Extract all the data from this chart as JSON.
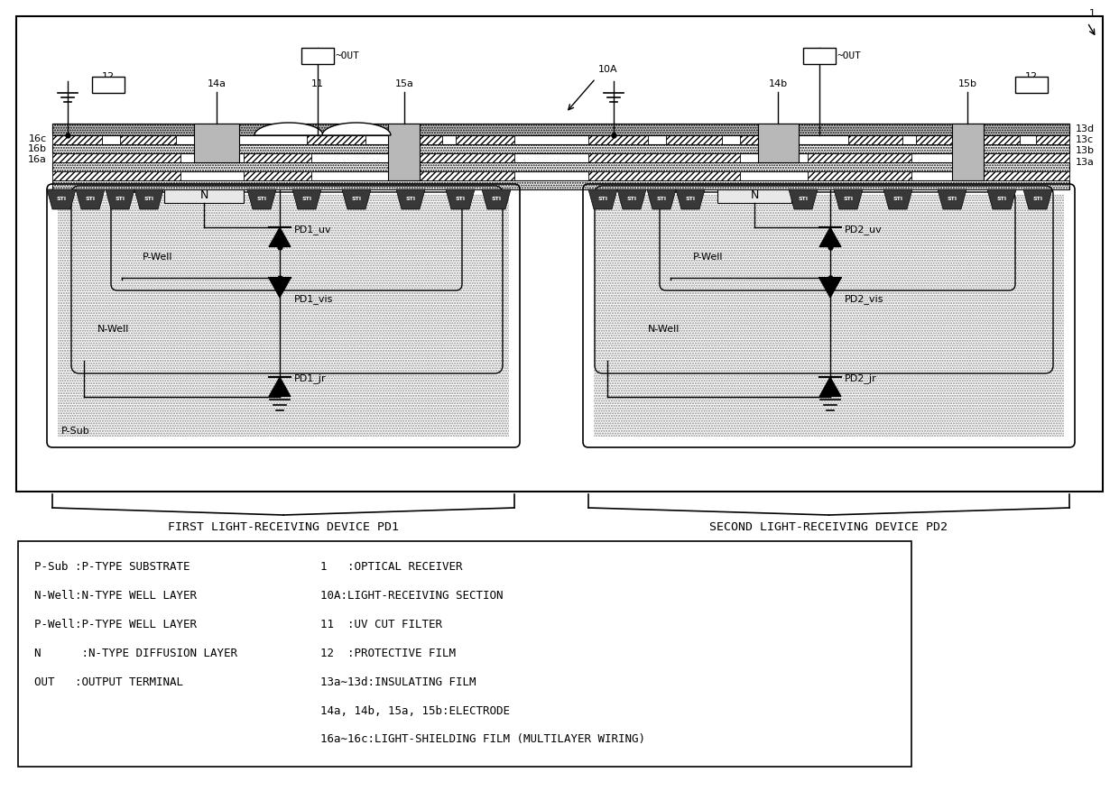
{
  "bg_color": "#ffffff",
  "diagram_label_1": "FIRST LIGHT-RECEIVING DEVICE PD1",
  "diagram_label_2": "SECOND LIGHT-RECEIVING DEVICE PD2",
  "legend_lines_left": [
    "P-Sub :P-TYPE SUBSTRATE",
    "N-Well:N-TYPE WELL LAYER",
    "P-Well:P-TYPE WELL LAYER",
    "N      :N-TYPE DIFFUSION LAYER",
    "OUT   :OUTPUT TERMINAL"
  ],
  "legend_lines_right": [
    "1   :OPTICAL RECEIVER",
    "10A:LIGHT-RECEIVING SECTION",
    "11  :UV CUT FILTER",
    "12  :PROTECTIVE FILM",
    "13a∼13d:INSULATING FILM",
    "14a, 14b, 15a, 15b:ELECTRODE",
    "16a∼16c:LIGHT-SHIELDING FILM (MULTILAYER WIRING)"
  ]
}
